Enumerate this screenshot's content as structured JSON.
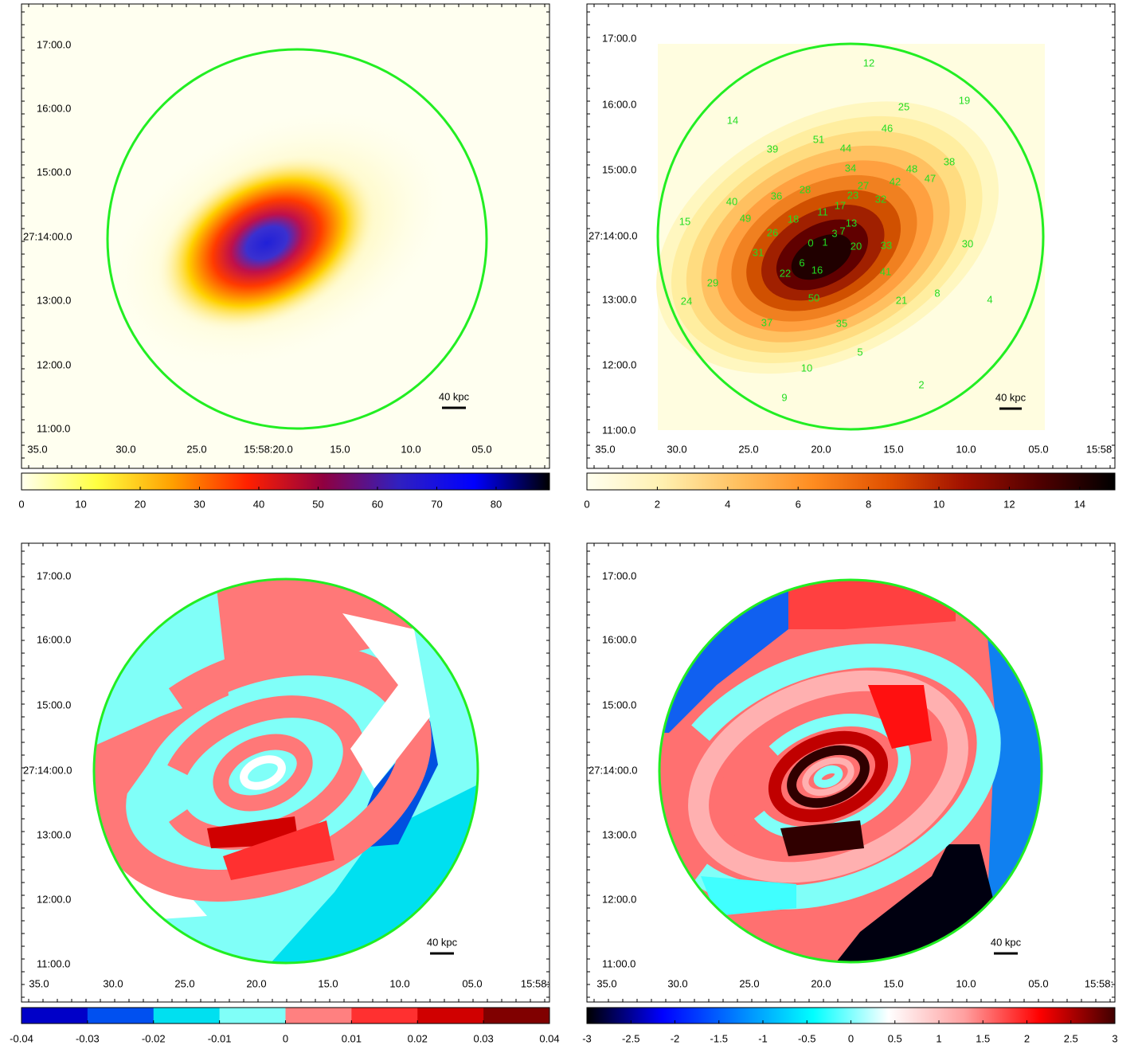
{
  "panels": [
    {
      "dec_ticks": [
        "17:00.0",
        "16:00.0",
        "15:00.0",
        "27:14:00.0",
        "13:00.0",
        "12:00.0",
        "11:00.0"
      ],
      "ra_ticks": [
        "35.0",
        "30.0",
        "25.0",
        "15:58:20.0",
        "15.0",
        "10.0",
        "05.0"
      ],
      "scale_label": "40 kpc",
      "colorbar": {
        "lim": [
          0,
          89
        ],
        "ticks": [
          0,
          10,
          20,
          30,
          40,
          50,
          60,
          70,
          80
        ],
        "colors": [
          "#fffff0",
          "#ffff40",
          "#ffa000",
          "#ff2000",
          "#900040",
          "#3020c0",
          "#0000ff",
          "#000000"
        ],
        "discrete": false
      }
    },
    {
      "dec_ticks": [
        "17:00.0",
        "16:00.0",
        "15:00.0",
        "27:14:00.0",
        "13:00.0",
        "12:00.0",
        "11:00.0"
      ],
      "ra_ticks": [
        "35.0",
        "30.0",
        "25.0",
        "20.0",
        "15.0",
        "10.0",
        "05.0",
        "15:58"
      ],
      "scale_label": "40 kpc",
      "bins": [
        "12",
        "25",
        "19",
        "14",
        "46",
        "39",
        "51",
        "44",
        "38",
        "34",
        "48",
        "47",
        "42",
        "28",
        "27",
        "23",
        "36",
        "40",
        "32",
        "17",
        "11",
        "49",
        "18",
        "15",
        "13",
        "26",
        "3",
        "7",
        "1",
        "0",
        "20",
        "33",
        "30",
        "31",
        "6",
        "16",
        "22",
        "41",
        "29",
        "8",
        "50",
        "21",
        "4",
        "24",
        "37",
        "35",
        "5",
        "10",
        "2",
        "9"
      ],
      "colorbar": {
        "lim": [
          0,
          15
        ],
        "ticks": [
          0,
          2,
          4,
          6,
          8,
          10,
          12,
          14
        ],
        "colors": [
          "#fffff0",
          "#fff0b0",
          "#ffc060",
          "#ff8c20",
          "#e05000",
          "#a01000",
          "#500000",
          "#000000"
        ],
        "discrete": false
      }
    },
    {
      "dec_ticks": [
        "17:00.0",
        "16:00.0",
        "15:00.0",
        "27:14:00.0",
        "13:00.0",
        "12:00.0",
        "11:00.0"
      ],
      "ra_ticks": [
        "35.0",
        "30.0",
        "25.0",
        "20.0",
        "15.0",
        "10.0",
        "05.0",
        "15:58:"
      ],
      "scale_label": "40 kpc",
      "colorbar": {
        "lim": [
          -0.04,
          0.04
        ],
        "ticks": [
          -0.04,
          -0.03,
          -0.02,
          -0.01,
          0,
          0.01,
          0.02,
          0.03,
          0.04
        ],
        "colors": [
          "#0000c8",
          "#0050f0",
          "#00e0f0",
          "#80fff8",
          "#ff8080",
          "#ff3030",
          "#d00000",
          "#800000"
        ],
        "discrete": true
      }
    },
    {
      "dec_ticks": [
        "17:00.0",
        "16:00.0",
        "15:00.0",
        "27:14:00.0",
        "13:00.0",
        "12:00.0",
        "11:00.0"
      ],
      "ra_ticks": [
        "35.0",
        "30.0",
        "25.0",
        "20.0",
        "15.0",
        "10.0",
        "05.0",
        "15:58:"
      ],
      "scale_label": "40 kpc",
      "colorbar": {
        "lim": [
          -3,
          3
        ],
        "ticks": [
          -3,
          -2.5,
          -2,
          -1.5,
          -1,
          -0.5,
          0,
          0.5,
          1,
          1.5,
          2,
          2.5,
          3
        ],
        "colors": [
          "#000000",
          "#0000ff",
          "#0080ff",
          "#00ffff",
          "#ffffff",
          "#ffa0a0",
          "#ff0000",
          "#400000"
        ],
        "discrete": false
      }
    }
  ]
}
